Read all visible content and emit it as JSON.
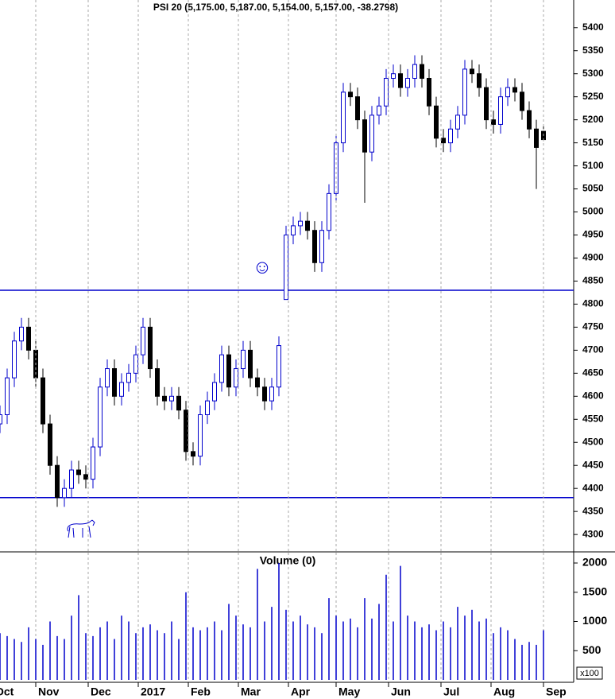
{
  "chart_data": [
    {
      "type": "candlestick",
      "title": "PSI 20 (5,175.00, 5,187.00, 5,154.00, 5,157.00, -38.2798)",
      "x": [
        -8,
        -5,
        -2,
        1,
        4,
        7,
        10,
        13,
        16,
        19,
        22,
        25,
        28,
        31,
        34,
        37,
        40,
        43,
        46,
        49,
        52,
        55,
        58,
        61,
        64,
        67,
        70,
        73,
        76,
        79,
        82,
        85,
        88,
        91,
        94,
        97,
        100,
        103,
        106,
        109,
        112,
        115,
        118,
        121,
        124,
        127,
        130,
        133,
        136,
        139,
        142,
        145,
        148,
        151,
        154,
        157,
        160,
        163,
        166,
        169,
        172,
        175,
        178,
        181,
        184,
        187,
        190,
        193,
        196,
        199,
        202,
        205,
        208,
        211,
        214,
        217,
        220
      ],
      "open": [
        4540,
        4560,
        4640,
        4720,
        4750,
        4700,
        4640,
        4540,
        4450,
        4380,
        4400,
        4440,
        4430,
        4420,
        4490,
        4620,
        4660,
        4600,
        4630,
        4650,
        4690,
        4750,
        4660,
        4600,
        4590,
        4600,
        4570,
        4480,
        4470,
        4560,
        4590,
        4630,
        4690,
        4620,
        4660,
        4700,
        4640,
        4620,
        4590,
        4620,
        4810,
        4950,
        4970,
        4980,
        4960,
        4890,
        4960,
        5040,
        5150,
        5260,
        5250,
        5200,
        5130,
        5210,
        5230,
        5290,
        5300,
        5270,
        5290,
        5320,
        5290,
        5230,
        5160,
        5150,
        5180,
        5210,
        5310,
        5300,
        5270,
        5200,
        5190,
        5250,
        5270,
        5260,
        5220,
        5180,
        5175
      ],
      "high": [
        4580,
        4660,
        4740,
        4770,
        4770,
        4720,
        4660,
        4560,
        4470,
        4420,
        4460,
        4460,
        4450,
        4510,
        4640,
        4680,
        4680,
        4650,
        4670,
        4710,
        4770,
        4770,
        4680,
        4620,
        4620,
        4620,
        4590,
        4500,
        4580,
        4610,
        4650,
        4710,
        4710,
        4680,
        4720,
        4720,
        4660,
        4640,
        4640,
        4730,
        4970,
        4990,
        5000,
        5000,
        4980,
        4980,
        5060,
        5170,
        5280,
        5280,
        5270,
        5220,
        5230,
        5250,
        5310,
        5320,
        5320,
        5310,
        5340,
        5340,
        5310,
        5250,
        5180,
        5200,
        5230,
        5330,
        5330,
        5320,
        5290,
        5220,
        5270,
        5290,
        5290,
        5280,
        5240,
        5200,
        5187
      ],
      "low": [
        4520,
        4540,
        4620,
        4700,
        4680,
        4620,
        4520,
        4430,
        4360,
        4360,
        4380,
        4410,
        4400,
        4400,
        4470,
        4600,
        4580,
        4580,
        4610,
        4630,
        4670,
        4640,
        4580,
        4570,
        4570,
        4550,
        4460,
        4450,
        4450,
        4540,
        4570,
        4610,
        4600,
        4600,
        4640,
        4620,
        4600,
        4570,
        4570,
        4600,
        4810,
        4930,
        4950,
        4940,
        4870,
        4870,
        4940,
        5020,
        5130,
        5230,
        5180,
        5020,
        5110,
        5190,
        5210,
        5270,
        5250,
        5250,
        5270,
        5270,
        5210,
        5140,
        5130,
        5130,
        5160,
        5190,
        5280,
        5250,
        5180,
        5170,
        5170,
        5230,
        5240,
        5200,
        5160,
        5050,
        5154
      ],
      "close": [
        4560,
        4640,
        4720,
        4750,
        4700,
        4640,
        4540,
        4450,
        4380,
        4400,
        4440,
        4430,
        4420,
        4490,
        4620,
        4660,
        4600,
        4630,
        4650,
        4690,
        4750,
        4660,
        4600,
        4590,
        4600,
        4570,
        4480,
        4470,
        4560,
        4590,
        4630,
        4690,
        4620,
        4660,
        4700,
        4640,
        4620,
        4590,
        4620,
        4710,
        4950,
        4970,
        4980,
        4960,
        4890,
        4960,
        5040,
        5150,
        5260,
        5250,
        5200,
        5130,
        5210,
        5230,
        5290,
        5300,
        5270,
        5290,
        5320,
        5290,
        5230,
        5160,
        5150,
        5180,
        5210,
        5310,
        5300,
        5270,
        5200,
        5190,
        5250,
        5270,
        5260,
        5220,
        5180,
        5140,
        5157
      ],
      "color": "#0000cc",
      "down_color": "#000000",
      "hlines": [
        4830,
        4380
      ],
      "hline_color": "#0000cc",
      "xlim": [
        -8,
        232
      ],
      "ylim": [
        4264,
        5460
      ],
      "yticks": [
        4300,
        4350,
        4400,
        4450,
        4500,
        4550,
        4600,
        4650,
        4700,
        4750,
        4800,
        4850,
        4900,
        4950,
        5000,
        5050,
        5100,
        5150,
        5200,
        5250,
        5300,
        5350,
        5400
      ]
    },
    {
      "type": "volume",
      "title": "Volume (0)",
      "unit_label": "x100",
      "x": [
        -8,
        -5,
        -2,
        1,
        4,
        7,
        10,
        13,
        16,
        19,
        22,
        25,
        28,
        31,
        34,
        37,
        40,
        43,
        46,
        49,
        52,
        55,
        58,
        61,
        64,
        67,
        70,
        73,
        76,
        79,
        82,
        85,
        88,
        91,
        94,
        97,
        100,
        103,
        106,
        109,
        112,
        115,
        118,
        121,
        124,
        127,
        130,
        133,
        136,
        139,
        142,
        145,
        148,
        151,
        154,
        157,
        160,
        163,
        166,
        169,
        172,
        175,
        178,
        181,
        184,
        187,
        190,
        193,
        196,
        199,
        202,
        205,
        208,
        211,
        214,
        217,
        220
      ],
      "values": [
        800,
        750,
        700,
        650,
        900,
        700,
        600,
        1000,
        750,
        700,
        1100,
        1450,
        800,
        750,
        900,
        1000,
        700,
        1100,
        1000,
        800,
        900,
        950,
        850,
        800,
        1000,
        700,
        1500,
        900,
        850,
        900,
        1000,
        850,
        1300,
        1100,
        950,
        900,
        1900,
        1000,
        1250,
        2000,
        1200,
        1000,
        1100,
        950,
        900,
        800,
        1400,
        1100,
        1000,
        1050,
        900,
        1400,
        1050,
        1300,
        1800,
        1000,
        1950,
        1100,
        1000,
        900,
        950,
        850,
        1000,
        900,
        1250,
        1100,
        1200,
        1000,
        1050,
        800,
        900,
        850,
        700,
        600,
        650,
        600,
        850
      ],
      "color": "#0000cc",
      "xlim": [
        -8,
        232
      ],
      "ylim": [
        0,
        2177
      ],
      "yticks": [
        500,
        1000,
        1500,
        2000
      ],
      "xticks": [
        {
          "value": -11,
          "label": "Oct"
        },
        {
          "value": 7,
          "label": "Nov"
        },
        {
          "value": 29,
          "label": "Dec"
        },
        {
          "value": 50,
          "label": "2017"
        },
        {
          "value": 71,
          "label": "Feb"
        },
        {
          "value": 92,
          "label": "Mar"
        },
        {
          "value": 113,
          "label": "Apr"
        },
        {
          "value": 133,
          "label": "May"
        },
        {
          "value": 155,
          "label": "Jun"
        },
        {
          "value": 177,
          "label": "Jul"
        },
        {
          "value": 198,
          "label": "Aug"
        },
        {
          "value": 220,
          "label": "Sep"
        }
      ]
    }
  ]
}
